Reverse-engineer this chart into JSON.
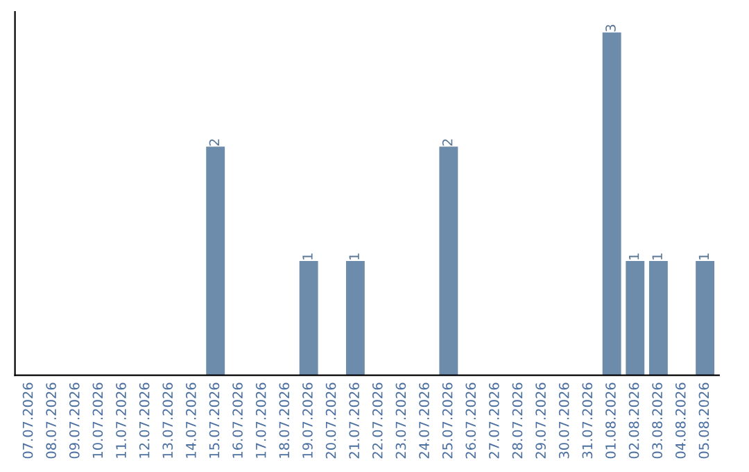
{
  "chart_data": {
    "type": "bar",
    "categories": [
      "07.07.2026",
      "08.07.2026",
      "09.07.2026",
      "10.07.2026",
      "11.07.2026",
      "12.07.2026",
      "13.07.2026",
      "14.07.2026",
      "15.07.2026",
      "16.07.2026",
      "17.07.2026",
      "18.07.2026",
      "19.07.2026",
      "20.07.2026",
      "21.07.2026",
      "22.07.2026",
      "23.07.2026",
      "24.07.2026",
      "25.07.2026",
      "26.07.2026",
      "27.07.2026",
      "28.07.2026",
      "29.07.2026",
      "30.07.2026",
      "31.07.2026",
      "01.08.2026",
      "02.08.2026",
      "03.08.2026",
      "04.08.2026",
      "05.08.2026"
    ],
    "values": [
      0,
      0,
      0,
      0,
      0,
      0,
      0,
      0,
      2,
      0,
      0,
      0,
      1,
      0,
      1,
      0,
      0,
      0,
      2,
      0,
      0,
      0,
      0,
      0,
      0,
      3,
      1,
      1,
      0,
      1
    ],
    "value_labels": [
      null,
      null,
      null,
      null,
      null,
      null,
      null,
      null,
      "2",
      null,
      null,
      null,
      "1",
      null,
      "1",
      null,
      null,
      null,
      "2",
      null,
      null,
      null,
      null,
      null,
      null,
      "3",
      "1",
      "1",
      null,
      "1"
    ],
    "color": "#6d8baa",
    "tick_labels": "x",
    "grid": false,
    "legend": false
  }
}
